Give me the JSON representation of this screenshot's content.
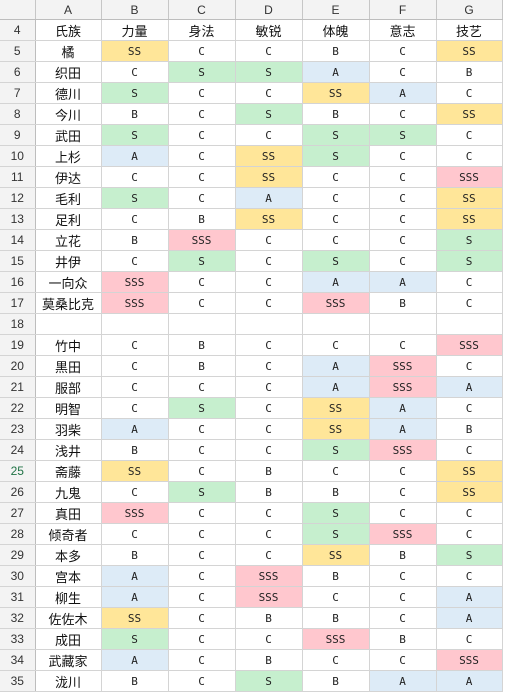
{
  "columns": [
    "A",
    "B",
    "C",
    "D",
    "E",
    "F",
    "G"
  ],
  "header_row": {
    "num": "4",
    "cells": [
      "氏族",
      "力量",
      "身法",
      "敏锐",
      "体魄",
      "意志",
      "技艺"
    ]
  },
  "colors": {
    "SS": "#ffe699",
    "S": "#c6efce",
    "SSS": "#ffc7ce",
    "A": "#ddebf7"
  },
  "rows": [
    {
      "num": "5",
      "clan": "橘",
      "vals": [
        "SS",
        "C",
        "C",
        "B",
        "C",
        "SS"
      ]
    },
    {
      "num": "6",
      "clan": "织田",
      "vals": [
        "C",
        "S",
        "S",
        "A",
        "C",
        "B"
      ]
    },
    {
      "num": "7",
      "clan": "德川",
      "vals": [
        "S",
        "C",
        "C",
        "SS",
        "A",
        "C"
      ]
    },
    {
      "num": "8",
      "clan": "今川",
      "vals": [
        "B",
        "C",
        "S",
        "B",
        "C",
        "SS"
      ]
    },
    {
      "num": "9",
      "clan": "武田",
      "vals": [
        "S",
        "C",
        "C",
        "S",
        "S",
        "C"
      ]
    },
    {
      "num": "10",
      "clan": "上杉",
      "vals": [
        "A",
        "C",
        "SS",
        "S",
        "C",
        "C"
      ]
    },
    {
      "num": "11",
      "clan": "伊达",
      "vals": [
        "C",
        "C",
        "SS",
        "C",
        "C",
        "SSS"
      ]
    },
    {
      "num": "12",
      "clan": "毛利",
      "vals": [
        "S",
        "C",
        "A",
        "C",
        "C",
        "SS"
      ]
    },
    {
      "num": "13",
      "clan": "足利",
      "vals": [
        "C",
        "B",
        "SS",
        "C",
        "C",
        "SS"
      ]
    },
    {
      "num": "14",
      "clan": "立花",
      "vals": [
        "B",
        "SSS",
        "C",
        "C",
        "C",
        "S"
      ]
    },
    {
      "num": "15",
      "clan": "井伊",
      "vals": [
        "C",
        "S",
        "C",
        "S",
        "C",
        "S"
      ]
    },
    {
      "num": "16",
      "clan": "一向众",
      "vals": [
        "SSS",
        "C",
        "C",
        "A",
        "A",
        "C"
      ]
    },
    {
      "num": "17",
      "clan": "莫桑比克",
      "vals": [
        "SSS",
        "C",
        "C",
        "SSS",
        "B",
        "C"
      ]
    },
    {
      "num": "18",
      "clan": "",
      "vals": [
        "",
        "",
        "",
        "",
        "",
        ""
      ]
    },
    {
      "num": "19",
      "clan": "竹中",
      "vals": [
        "C",
        "B",
        "C",
        "C",
        "C",
        "SSS"
      ]
    },
    {
      "num": "20",
      "clan": "黒田",
      "vals": [
        "C",
        "B",
        "C",
        "A",
        "SSS",
        "C"
      ]
    },
    {
      "num": "21",
      "clan": "服部",
      "vals": [
        "C",
        "C",
        "C",
        "A",
        "SSS",
        "A"
      ]
    },
    {
      "num": "22",
      "clan": "明智",
      "vals": [
        "C",
        "S",
        "C",
        "SS",
        "A",
        "C"
      ]
    },
    {
      "num": "23",
      "clan": "羽柴",
      "vals": [
        "A",
        "C",
        "C",
        "SS",
        "A",
        "B"
      ]
    },
    {
      "num": "24",
      "clan": "浅井",
      "vals": [
        "B",
        "C",
        "C",
        "S",
        "SSS",
        "C"
      ]
    },
    {
      "num": "25",
      "clan": "斋藤",
      "vals": [
        "SS",
        "C",
        "B",
        "C",
        "C",
        "SS"
      ]
    },
    {
      "num": "26",
      "clan": "九鬼",
      "vals": [
        "C",
        "S",
        "B",
        "B",
        "C",
        "SS"
      ]
    },
    {
      "num": "27",
      "clan": "真田",
      "vals": [
        "SSS",
        "C",
        "C",
        "S",
        "C",
        "C"
      ]
    },
    {
      "num": "28",
      "clan": "倾奇者",
      "vals": [
        "C",
        "C",
        "C",
        "S",
        "SSS",
        "C"
      ]
    },
    {
      "num": "29",
      "clan": "本多",
      "vals": [
        "B",
        "C",
        "C",
        "SS",
        "B",
        "S"
      ]
    },
    {
      "num": "30",
      "clan": "宫本",
      "vals": [
        "A",
        "C",
        "SSS",
        "B",
        "C",
        "C"
      ]
    },
    {
      "num": "31",
      "clan": "柳生",
      "vals": [
        "A",
        "C",
        "SSS",
        "C",
        "C",
        "A"
      ]
    },
    {
      "num": "32",
      "clan": "佐佐木",
      "vals": [
        "SS",
        "C",
        "B",
        "B",
        "C",
        "A"
      ]
    },
    {
      "num": "33",
      "clan": "成田",
      "vals": [
        "S",
        "C",
        "C",
        "SSS",
        "B",
        "C"
      ]
    },
    {
      "num": "34",
      "clan": "武藏家",
      "vals": [
        "A",
        "C",
        "B",
        "C",
        "C",
        "SSS"
      ]
    },
    {
      "num": "35",
      "clan": "泷川",
      "vals": [
        "B",
        "C",
        "S",
        "B",
        "A",
        "A"
      ]
    }
  ]
}
